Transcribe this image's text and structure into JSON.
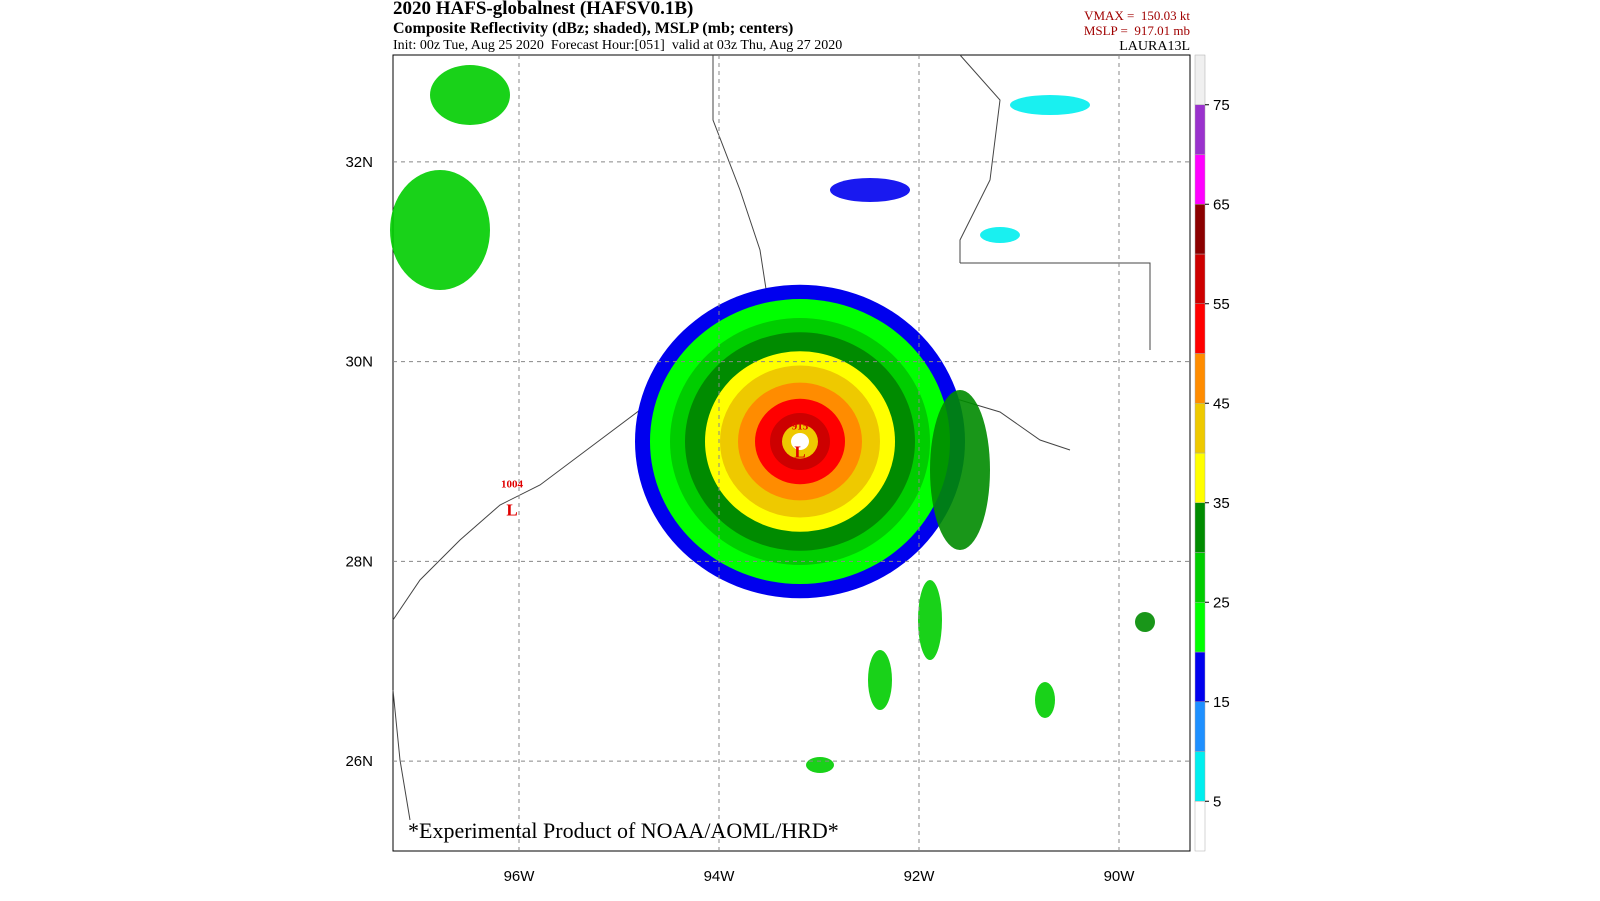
{
  "header": {
    "title": "2020 HAFS-globalnest (HAFSV0.1B)",
    "subtitle": "Composite Reflectivity (dBz; shaded), MSLP (mb; centers)",
    "init_line": "Init: 00z Tue, Aug 25 2020  Forecast Hour:[051]  valid at 03z Thu, Aug 27 2020",
    "vmax": "VMAX =  150.03 kt",
    "mslp": "MSLP =  917.01 mb",
    "storm_id": "LAURA13L"
  },
  "map": {
    "lat_range": [
      25.1,
      33.07
    ],
    "lon_range": [
      -97.26,
      -89.29
    ],
    "lat_ticks": [
      {
        "value": 32,
        "label": "32N"
      },
      {
        "value": 30,
        "label": "30N"
      },
      {
        "value": 28,
        "label": "28N"
      },
      {
        "value": 26,
        "label": "26N"
      }
    ],
    "lon_ticks": [
      {
        "value": -96,
        "label": "96W"
      },
      {
        "value": -94,
        "label": "94W"
      },
      {
        "value": -92,
        "label": "92W"
      },
      {
        "value": -90,
        "label": "90W"
      }
    ],
    "centers": [
      {
        "label": "L",
        "pressure": 915,
        "lat": 29.1,
        "lon": -93.19
      },
      {
        "label": "L",
        "pressure": 1004,
        "lat": 28.52,
        "lon": -96.07
      }
    ],
    "footer": "*Experimental Product of NOAA/AOML/HRD*"
  },
  "colorbar": {
    "range": [
      0,
      80
    ],
    "levels": [
      0,
      5,
      10,
      15,
      20,
      25,
      30,
      35,
      40,
      45,
      50,
      55,
      60,
      65,
      70,
      75,
      80
    ],
    "colors": [
      "#ffffff",
      "#00eeee",
      "#1e90ff",
      "#0000ee",
      "#00ff00",
      "#00cd00",
      "#008b00",
      "#ffff00",
      "#eec900",
      "#ff8c00",
      "#ff0000",
      "#cd0000",
      "#8b0000",
      "#ff00ff",
      "#9a32cd",
      "#f0f0f0"
    ],
    "ticks": [
      5,
      15,
      25,
      35,
      45,
      55,
      65,
      75
    ]
  }
}
